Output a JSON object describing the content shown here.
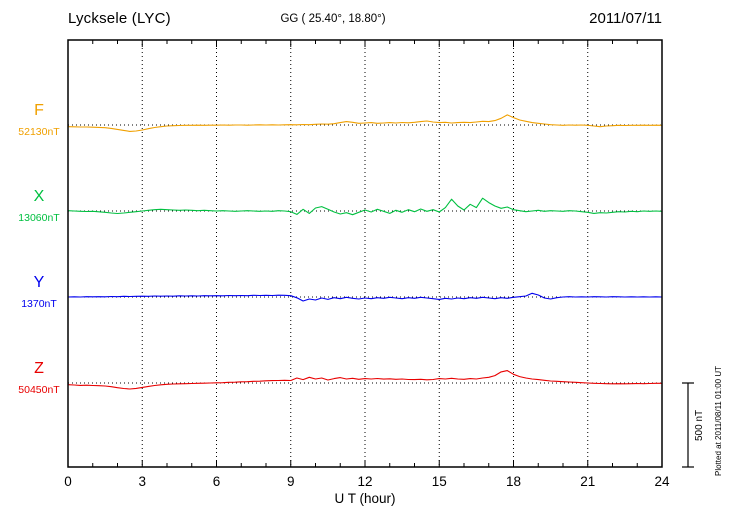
{
  "chart_data": {
    "type": "line",
    "title": "Lycksele (LYC)",
    "coords": "GG ( 25.40°, 18.80°)",
    "date": "2011/07/11",
    "xlabel": "U T (hour)",
    "xlim": [
      0,
      24
    ],
    "x_ticks": [
      0,
      3,
      6,
      9,
      12,
      15,
      18,
      21,
      24
    ],
    "x_step_hours": 0.25,
    "grid": "dotted-vertical-every-3h",
    "scale_bar_nT": 500,
    "scale_bar_label": "500 nT",
    "plotted_note": "Plotted at 2011/08/11 01:00 UT",
    "frame_color": "#000000",
    "series": [
      {
        "name": "F",
        "baseline_label": "52130nT",
        "baseline_value": 52130,
        "color": "#f0a000",
        "values": [
          -10,
          -11,
          -12,
          -12,
          -13,
          -14,
          -16,
          -20,
          -26,
          -32,
          -38,
          -36,
          -30,
          -22,
          -15,
          -10,
          -6,
          -4,
          -3,
          -2,
          -2,
          -1,
          -2,
          -1,
          -1,
          0,
          -1,
          0,
          0,
          -1,
          0,
          1,
          0,
          1,
          0,
          1,
          2,
          1,
          3,
          2,
          4,
          6,
          5,
          8,
          14,
          20,
          16,
          10,
          12,
          14,
          10,
          12,
          14,
          12,
          15,
          13,
          16,
          20,
          24,
          18,
          14,
          16,
          12,
          14,
          16,
          14,
          18,
          22,
          20,
          26,
          40,
          60,
          44,
          30,
          22,
          14,
          10,
          6,
          2,
          0,
          -2,
          0,
          -1,
          0,
          -2,
          -6,
          -10,
          -6,
          -4,
          -2,
          -3,
          -2,
          -2,
          -1,
          -2,
          -1,
          -2
        ]
      },
      {
        "name": "X",
        "baseline_label": "13060nT",
        "baseline_value": 13060,
        "color": "#00c040",
        "values": [
          2,
          0,
          -2,
          -3,
          -2,
          -5,
          -8,
          -12,
          -15,
          -12,
          -8,
          -4,
          0,
          4,
          8,
          10,
          8,
          6,
          4,
          6,
          4,
          2,
          4,
          2,
          0,
          2,
          0,
          -2,
          0,
          2,
          0,
          -2,
          0,
          -2,
          2,
          0,
          -4,
          -20,
          10,
          -14,
          18,
          26,
          10,
          -6,
          -18,
          -10,
          -22,
          -8,
          6,
          -6,
          10,
          -2,
          -14,
          4,
          -8,
          8,
          -4,
          12,
          -2,
          8,
          -6,
          20,
          70,
          30,
          6,
          40,
          20,
          76,
          50,
          30,
          16,
          24,
          8,
          2,
          -4,
          0,
          4,
          -2,
          2,
          0,
          -2,
          2,
          0,
          -4,
          -8,
          -14,
          -10,
          -12,
          -8,
          -4,
          -6,
          -2,
          -4,
          0,
          -2,
          0,
          -2
        ]
      },
      {
        "name": "Y",
        "baseline_label": "1370nT",
        "baseline_value": 1370,
        "color": "#0000ee",
        "values": [
          0,
          1,
          0,
          2,
          1,
          2,
          1,
          3,
          2,
          4,
          3,
          4,
          5,
          4,
          6,
          5,
          6,
          5,
          7,
          6,
          7,
          6,
          8,
          7,
          8,
          7,
          9,
          8,
          9,
          8,
          10,
          9,
          10,
          9,
          11,
          10,
          8,
          -5,
          -24,
          -12,
          -18,
          -6,
          -14,
          -4,
          -10,
          -2,
          -8,
          -12,
          -6,
          -10,
          -4,
          -8,
          -2,
          -6,
          -10,
          -4,
          -8,
          -2,
          -6,
          -10,
          -14,
          -8,
          -12,
          -6,
          -10,
          -4,
          -8,
          -2,
          -6,
          -10,
          -4,
          -8,
          -2,
          2,
          6,
          22,
          12,
          -6,
          -12,
          -4,
          0,
          2,
          0,
          1,
          0,
          2,
          1,
          0,
          2,
          1,
          0,
          1,
          0,
          1,
          0,
          1,
          0
        ]
      },
      {
        "name": "Z",
        "baseline_label": "50450nT",
        "baseline_value": 50450,
        "color": "#e80000",
        "values": [
          -10,
          -12,
          -14,
          -13,
          -15,
          -16,
          -18,
          -22,
          -28,
          -33,
          -36,
          -32,
          -26,
          -20,
          -15,
          -11,
          -8,
          -6,
          -5,
          -4,
          -3,
          -2,
          -1,
          0,
          1,
          2,
          4,
          5,
          7,
          8,
          10,
          11,
          13,
          14,
          15,
          16,
          15,
          30,
          20,
          34,
          24,
          30,
          18,
          26,
          32,
          24,
          28,
          22,
          26,
          24,
          27,
          23,
          25,
          22,
          24,
          21,
          20,
          22,
          19,
          21,
          26,
          24,
          28,
          24,
          22,
          26,
          24,
          30,
          34,
          44,
          66,
          74,
          52,
          38,
          30,
          24,
          20,
          16,
          12,
          10,
          8,
          6,
          4,
          2,
          0,
          -2,
          -3,
          -4,
          -5,
          -4,
          -5,
          -4,
          -3,
          -4,
          -3,
          -2,
          -2
        ]
      }
    ]
  }
}
